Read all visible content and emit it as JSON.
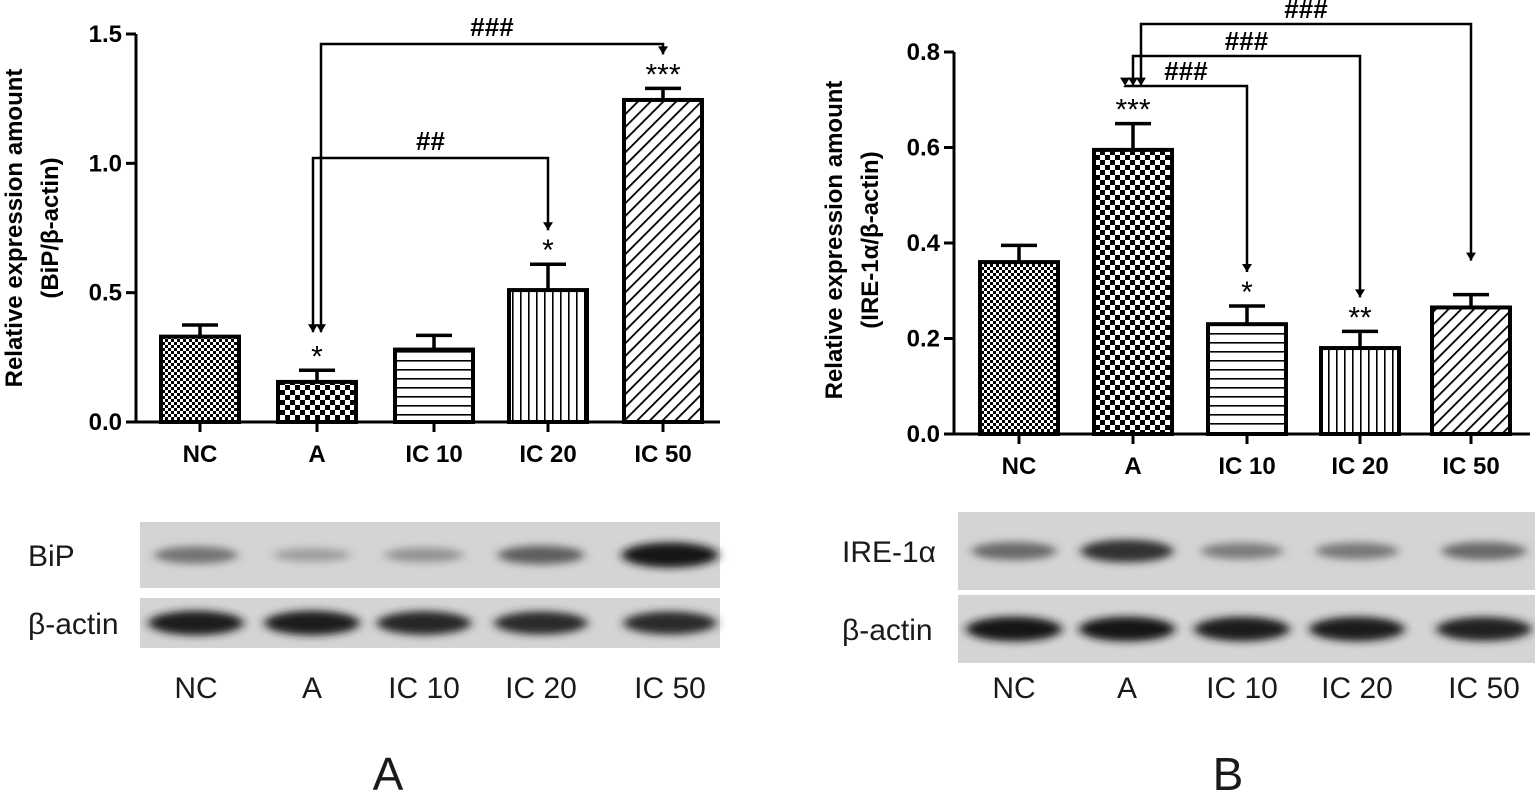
{
  "figure": {
    "panels": [
      "A",
      "B"
    ]
  },
  "chart_data": [
    {
      "type": "bar",
      "panel": "A",
      "ylabel_line1": "Relative expression amount",
      "ylabel_line2": "(BiP/β-actin)",
      "ylim": [
        0,
        1.5
      ],
      "yticks": [
        "0.0",
        "0.5",
        "1.0",
        "1.5"
      ],
      "ytick_values": [
        0,
        0.5,
        1.0,
        1.5
      ],
      "categories": [
        "NC",
        "A",
        "IC 10",
        "IC 20",
        "IC 50"
      ],
      "values": [
        0.33,
        0.155,
        0.28,
        0.51,
        1.245
      ],
      "errors": [
        0.045,
        0.045,
        0.055,
        0.1,
        0.045
      ],
      "patterns": [
        "fine-check",
        "check",
        "horizontal",
        "vertical",
        "diagonal"
      ],
      "stars": [
        "",
        "*",
        "",
        "*",
        "***"
      ],
      "comparisons": [
        {
          "from": "A",
          "to": "IC 20",
          "label": "##"
        },
        {
          "from": "A",
          "to": "IC 50",
          "label": "###"
        }
      ],
      "blot": {
        "rows": [
          "BiP",
          "β-actin"
        ],
        "lanes": [
          "NC",
          "A",
          "IC 10",
          "IC 20",
          "IC 50"
        ],
        "band_intensity": [
          [
            0.45,
            0.22,
            0.28,
            0.55,
            0.95
          ],
          [
            0.9,
            0.9,
            0.85,
            0.82,
            0.82
          ]
        ]
      }
    },
    {
      "type": "bar",
      "panel": "B",
      "ylabel_line1": "Relative expression amount",
      "ylabel_line2": "(IRE-1α/β-actin)",
      "ylim": [
        0,
        0.8
      ],
      "yticks": [
        "0.0",
        "0.2",
        "0.4",
        "0.6",
        "0.8"
      ],
      "ytick_values": [
        0,
        0.2,
        0.4,
        0.6,
        0.8
      ],
      "categories": [
        "NC",
        "A",
        "IC 10",
        "IC 20",
        "IC 50"
      ],
      "values": [
        0.36,
        0.595,
        0.23,
        0.18,
        0.265
      ],
      "errors": [
        0.035,
        0.055,
        0.038,
        0.035,
        0.027
      ],
      "patterns": [
        "fine-check",
        "check",
        "horizontal",
        "vertical",
        "diagonal"
      ],
      "stars": [
        "",
        "***",
        "*",
        "**",
        ""
      ],
      "comparisons": [
        {
          "from": "A",
          "to": "IC 10",
          "label": "###"
        },
        {
          "from": "A",
          "to": "IC 20",
          "label": "###"
        },
        {
          "from": "A",
          "to": "IC 50",
          "label": "###"
        }
      ],
      "blot": {
        "rows": [
          "IRE-1α",
          "β-actin"
        ],
        "lanes": [
          "NC",
          "A",
          "IC 10",
          "IC 20",
          "IC 50"
        ],
        "band_intensity": [
          [
            0.5,
            0.8,
            0.4,
            0.42,
            0.5
          ],
          [
            0.92,
            0.92,
            0.9,
            0.9,
            0.88
          ]
        ]
      }
    }
  ]
}
